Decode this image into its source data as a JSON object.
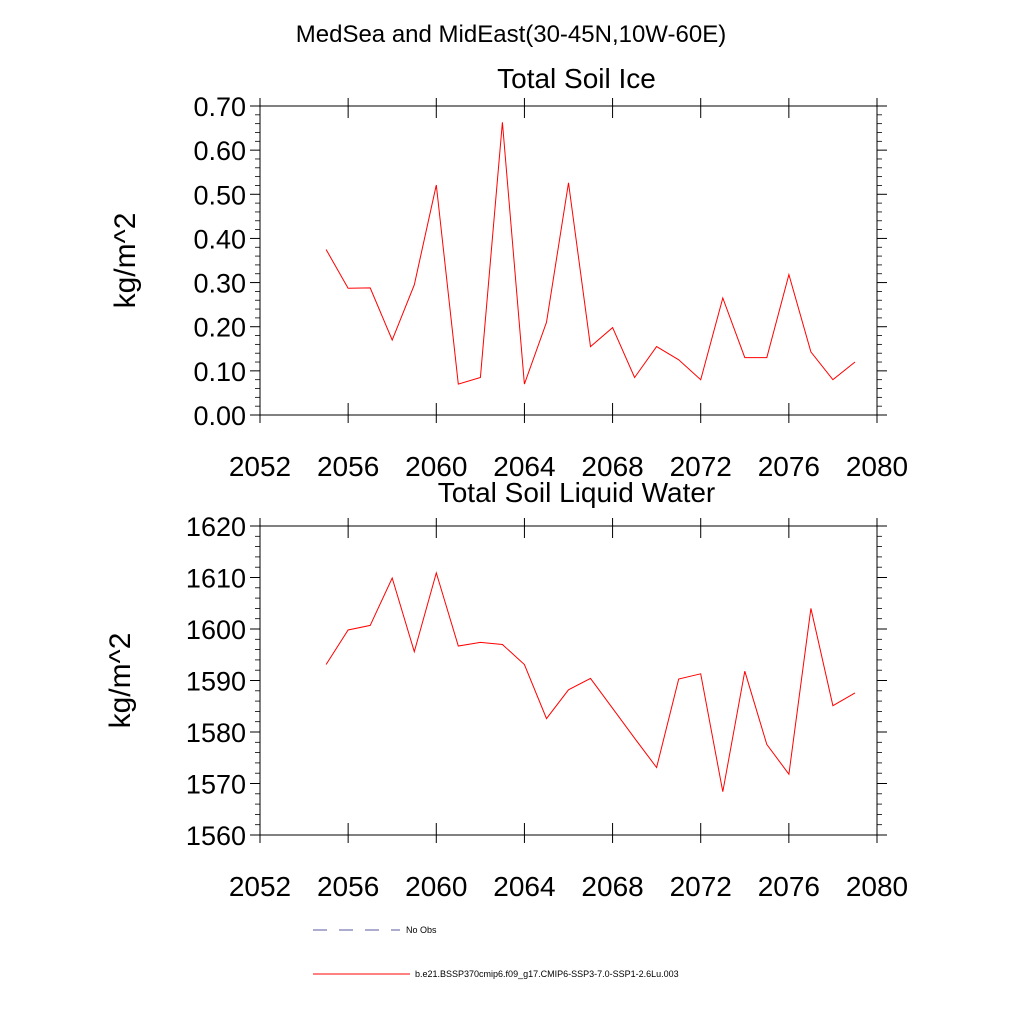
{
  "figure": {
    "suptitle": "MedSea and MidEast(30-45N,10W-60E)"
  },
  "chart_data": [
    {
      "type": "line",
      "title": "Total Soil Ice",
      "xlabel": "",
      "ylabel": "kg/m^2",
      "xlim": [
        2052,
        2080
      ],
      "ylim": [
        0.0,
        0.7
      ],
      "x_ticks": [
        "2052",
        "2056",
        "2060",
        "2064",
        "2068",
        "2072",
        "2076",
        "2080"
      ],
      "y_ticks": [
        "0.00",
        "0.10",
        "0.20",
        "0.30",
        "0.40",
        "0.50",
        "0.60",
        "0.70"
      ],
      "y_tick_values": [
        0.0,
        0.1,
        0.2,
        0.3,
        0.4,
        0.5,
        0.6,
        0.7
      ],
      "x": [
        2055,
        2056,
        2057,
        2058,
        2059,
        2060,
        2061,
        2062,
        2063,
        2064,
        2065,
        2066,
        2067,
        2068,
        2069,
        2070,
        2071,
        2072,
        2073,
        2074,
        2075,
        2076,
        2077,
        2078,
        2079
      ],
      "series": [
        {
          "name": "b.e21.BSSP370cmip6.f09_g17.CMIP6-SSP3-7.0-SSP1-2.6Lu.003",
          "color": "#ff0000",
          "values": [
            0.375,
            0.287,
            0.288,
            0.17,
            0.295,
            0.521,
            0.07,
            0.085,
            0.663,
            0.07,
            0.21,
            0.526,
            0.155,
            0.198,
            0.085,
            0.155,
            0.125,
            0.08,
            0.265,
            0.13,
            0.13,
            0.318,
            0.143,
            0.08,
            0.12
          ]
        }
      ],
      "grid": false
    },
    {
      "type": "line",
      "title": "Total Soil Liquid Water",
      "xlabel": "",
      "ylabel": "kg/m^2",
      "xlim": [
        2052,
        2080
      ],
      "ylim": [
        1560,
        1620
      ],
      "x_ticks": [
        "2052",
        "2056",
        "2060",
        "2064",
        "2068",
        "2072",
        "2076",
        "2080"
      ],
      "y_ticks": [
        "1560",
        "1570",
        "1580",
        "1590",
        "1600",
        "1610",
        "1620"
      ],
      "y_tick_values": [
        1560,
        1570,
        1580,
        1590,
        1600,
        1610,
        1620
      ],
      "x": [
        2055,
        2056,
        2057,
        2058,
        2059,
        2060,
        2061,
        2062,
        2063,
        2064,
        2065,
        2066,
        2067,
        2068,
        2069,
        2070,
        2071,
        2072,
        2073,
        2074,
        2075,
        2076,
        2077,
        2078,
        2079
      ],
      "series": [
        {
          "name": "b.e21.BSSP370cmip6.f09_g17.CMIP6-SSP3-7.0-SSP1-2.6Lu.003",
          "color": "#ff0000",
          "values": [
            1593.1,
            1599.8,
            1600.7,
            1609.9,
            1595.6,
            1610.9,
            1596.7,
            1597.4,
            1597.0,
            1593.1,
            1582.6,
            1588.2,
            1590.4,
            1584.6,
            1578.8,
            1573.1,
            1590.3,
            1591.3,
            1568.4,
            1591.8,
            1577.6,
            1571.8,
            1604.0,
            1585.1,
            1587.6
          ]
        }
      ],
      "grid": false
    }
  ],
  "legend": {
    "placement": "bottom",
    "entries": [
      {
        "label": "No Obs",
        "color": "#5a5aa0",
        "style": "dashed"
      },
      {
        "label": "b.e21.BSSP370cmip6.f09_g17.CMIP6-SSP3-7.0-SSP1-2.6Lu.003",
        "color": "#ff0000",
        "style": "solid"
      }
    ]
  }
}
